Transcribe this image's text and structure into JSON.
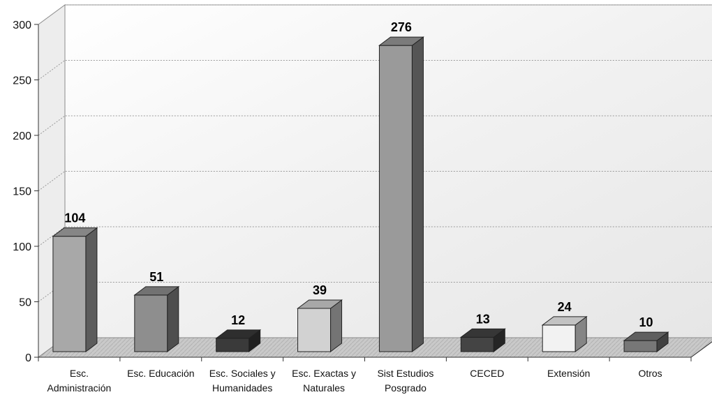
{
  "chart_data": {
    "type": "bar",
    "title": "",
    "xlabel": "",
    "ylabel": "",
    "ylim": [
      0,
      300
    ],
    "yticks": [
      0,
      50,
      100,
      150,
      200,
      250,
      300
    ],
    "grid": true,
    "legend": "none",
    "categories": [
      [
        "Esc.",
        "Administración"
      ],
      [
        "Esc. Educación"
      ],
      [
        "Esc. Sociales y",
        "Humanidades"
      ],
      [
        "Esc. Exactas y",
        "Naturales"
      ],
      [
        "Sist Estudios",
        "Posgrado"
      ],
      [
        "CECED"
      ],
      [
        "Extensión"
      ],
      [
        "Otros"
      ]
    ],
    "values": [
      104,
      51,
      12,
      39,
      276,
      13,
      24,
      10
    ],
    "colors": [
      "#a8a8a8",
      "#8e8e8e",
      "#3a3a3a",
      "#d2d2d2",
      "#9a9a9a",
      "#444444",
      "#f2f2f2",
      "#777777"
    ]
  }
}
